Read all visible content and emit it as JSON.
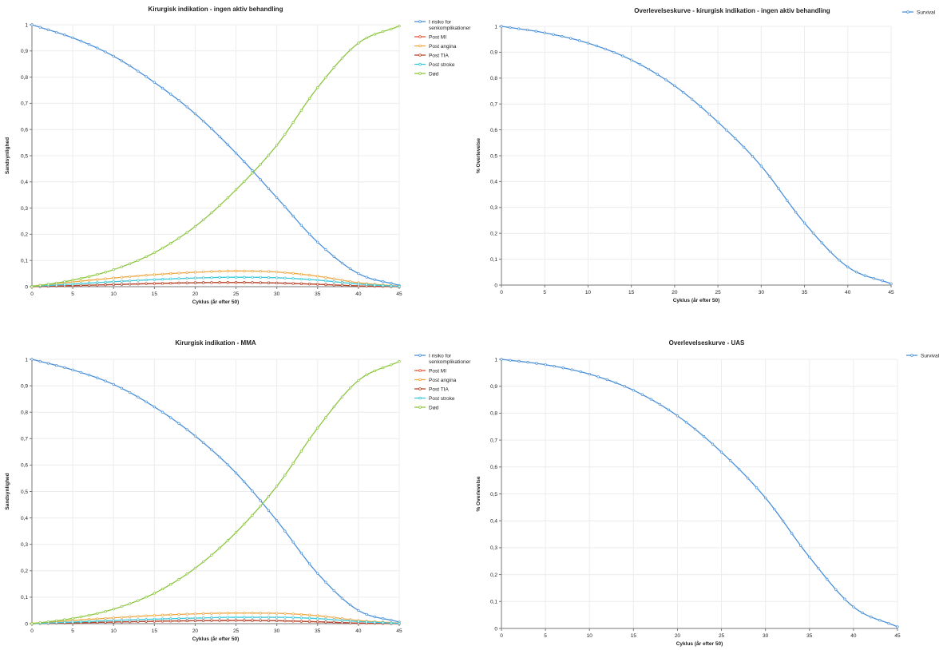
{
  "chart_data": [
    {
      "type": "line",
      "title": "Kirurgisk indikation - ingen aktiv behandling",
      "xlabel": "Cyklus (år efter 50)",
      "ylabel": "Sandsynlighed",
      "xlim": [
        0,
        45
      ],
      "ylim": [
        0,
        1
      ],
      "xticks": [
        "0",
        "5",
        "10",
        "15",
        "20",
        "25",
        "30",
        "35",
        "40",
        "45"
      ],
      "yticks": [
        "0",
        "0,1",
        "0,2",
        "0,3",
        "0,4",
        "0,5",
        "0,6",
        "0,7",
        "0,8",
        "0,9",
        "1"
      ],
      "grid": true,
      "legend_position": "right",
      "x": [
        0,
        5,
        10,
        15,
        20,
        25,
        30,
        35,
        40,
        45
      ],
      "series": [
        {
          "name": "I risiko for senkomplikationer",
          "color": "#4a90d9",
          "values": [
            1.0,
            0.95,
            0.88,
            0.78,
            0.66,
            0.51,
            0.34,
            0.17,
            0.05,
            0.005
          ]
        },
        {
          "name": "Post MI",
          "color": "#e8543a",
          "values": [
            0,
            0.004,
            0.008,
            0.012,
            0.015,
            0.016,
            0.014,
            0.009,
            0.003,
            0.0
          ]
        },
        {
          "name": "Post angina",
          "color": "#f0a742",
          "values": [
            0.002,
            0.018,
            0.033,
            0.046,
            0.055,
            0.06,
            0.056,
            0.04,
            0.015,
            0.002
          ]
        },
        {
          "name": "Post TIA",
          "color": "#b5472e",
          "values": [
            0,
            0.004,
            0.008,
            0.012,
            0.015,
            0.016,
            0.014,
            0.009,
            0.003,
            0.0
          ]
        },
        {
          "name": "Post stroke",
          "color": "#3cc8d8",
          "values": [
            0.001,
            0.01,
            0.019,
            0.027,
            0.033,
            0.036,
            0.034,
            0.025,
            0.01,
            0.001
          ]
        },
        {
          "name": "Død",
          "color": "#8cc63f",
          "values": [
            0.0,
            0.025,
            0.065,
            0.13,
            0.23,
            0.37,
            0.54,
            0.76,
            0.93,
            0.995
          ]
        }
      ]
    },
    {
      "type": "line",
      "title": "Overlevelseskurve - kirurgisk indikation - ingen aktiv behandling",
      "xlabel": "Cyklus (år efter 50)",
      "ylabel": "% Overlevelse",
      "xlim": [
        0,
        45
      ],
      "ylim": [
        0,
        1
      ],
      "xticks": [
        "0",
        "5",
        "10",
        "15",
        "20",
        "25",
        "30",
        "35",
        "40",
        "45"
      ],
      "yticks": [
        "0",
        "0,1",
        "0,2",
        "0,3",
        "0,4",
        "0,5",
        "0,6",
        "0,7",
        "0,8",
        "0,9",
        "1"
      ],
      "grid": true,
      "legend_position": "top-right",
      "x": [
        0,
        5,
        10,
        15,
        20,
        25,
        30,
        35,
        40,
        45
      ],
      "series": [
        {
          "name": "Survival",
          "color": "#4a90d9",
          "values": [
            1.0,
            0.975,
            0.935,
            0.87,
            0.77,
            0.63,
            0.46,
            0.24,
            0.07,
            0.005
          ]
        }
      ]
    },
    {
      "type": "line",
      "title": "Kirurgisk indikation - MMA",
      "xlabel": "Cyklus (år efter 50)",
      "ylabel": "Sandsynlighed",
      "xlim": [
        0,
        45
      ],
      "ylim": [
        0,
        1
      ],
      "xticks": [
        "0",
        "5",
        "10",
        "15",
        "20",
        "25",
        "30",
        "35",
        "40",
        "45"
      ],
      "yticks": [
        "0",
        "0,1",
        "0,2",
        "0,3",
        "0,4",
        "0,5",
        "0,6",
        "0,7",
        "0,8",
        "0,9",
        "1"
      ],
      "grid": true,
      "legend_position": "right",
      "x": [
        0,
        5,
        10,
        15,
        20,
        25,
        30,
        35,
        40,
        45
      ],
      "series": [
        {
          "name": "I risiko for senkomplikationer",
          "color": "#4a90d9",
          "values": [
            1.0,
            0.96,
            0.905,
            0.82,
            0.71,
            0.57,
            0.39,
            0.19,
            0.05,
            0.006
          ]
        },
        {
          "name": "Post MI",
          "color": "#e8543a",
          "values": [
            0,
            0.003,
            0.006,
            0.009,
            0.011,
            0.012,
            0.011,
            0.007,
            0.002,
            0.0
          ]
        },
        {
          "name": "Post angina",
          "color": "#f0a742",
          "values": [
            0.001,
            0.012,
            0.022,
            0.031,
            0.037,
            0.04,
            0.039,
            0.03,
            0.012,
            0.002
          ]
        },
        {
          "name": "Post TIA",
          "color": "#b5472e",
          "values": [
            0,
            0.003,
            0.006,
            0.009,
            0.011,
            0.012,
            0.011,
            0.007,
            0.002,
            0.0
          ]
        },
        {
          "name": "Post stroke",
          "color": "#3cc8d8",
          "values": [
            0.0,
            0.006,
            0.012,
            0.017,
            0.021,
            0.024,
            0.024,
            0.019,
            0.008,
            0.001
          ]
        },
        {
          "name": "Død",
          "color": "#8cc63f",
          "values": [
            0.0,
            0.02,
            0.055,
            0.115,
            0.21,
            0.345,
            0.52,
            0.74,
            0.92,
            0.992
          ]
        }
      ]
    },
    {
      "type": "line",
      "title": "Overlevelseskurve - UAS",
      "xlabel": "Cyklus (år efter 50)",
      "ylabel": "% Overlevelse",
      "xlim": [
        0,
        45
      ],
      "ylim": [
        0,
        1
      ],
      "xticks": [
        "0",
        "5",
        "10",
        "15",
        "20",
        "25",
        "30",
        "35",
        "40",
        "45"
      ],
      "yticks": [
        "0",
        "0,1",
        "0,2",
        "0,3",
        "0,4",
        "0,5",
        "0,6",
        "0,7",
        "0,8",
        "0,9",
        "1"
      ],
      "grid": true,
      "legend_position": "top-right",
      "x": [
        0,
        5,
        10,
        15,
        20,
        25,
        30,
        35,
        40,
        45
      ],
      "series": [
        {
          "name": "Survival",
          "color": "#4a90d9",
          "values": [
            1.0,
            0.98,
            0.945,
            0.885,
            0.79,
            0.655,
            0.485,
            0.265,
            0.08,
            0.006
          ]
        }
      ]
    }
  ]
}
